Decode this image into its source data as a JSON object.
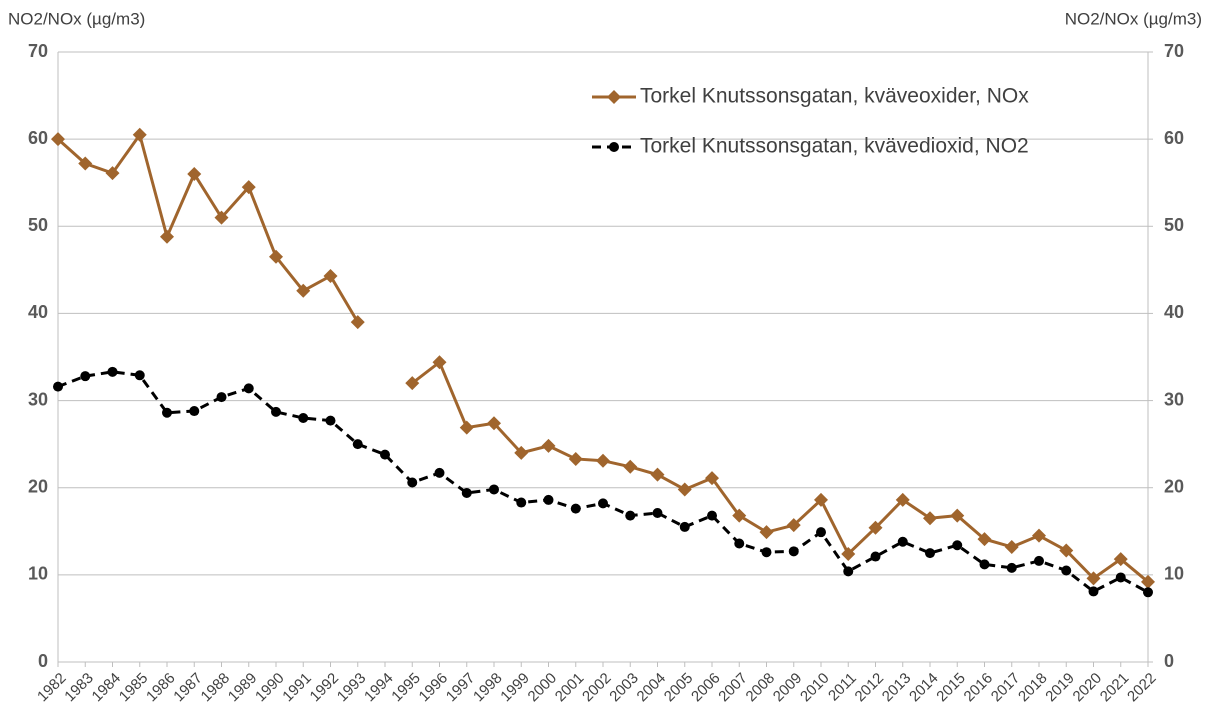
{
  "chart_data": {
    "type": "line",
    "y_label": "NO2/NOx (µg/m3)",
    "y2_label": "NO2/NOx (µg/m3)",
    "categories": [
      "1982",
      "1983",
      "1984",
      "1985",
      "1986",
      "1987",
      "1988",
      "1989",
      "1990",
      "1991",
      "1992",
      "1993",
      "1994",
      "1995",
      "1996",
      "1997",
      "1998",
      "1999",
      "2000",
      "2001",
      "2002",
      "2003",
      "2004",
      "2005",
      "2006",
      "2007",
      "2008",
      "2009",
      "2010",
      "2011",
      "2012",
      "2013",
      "2014",
      "2015",
      "2016",
      "2017",
      "2018",
      "2019",
      "2020",
      "2021",
      "2022"
    ],
    "series": [
      {
        "name": "Torkel Knutssonsgatan, kväveoxider, NOx",
        "color": "#a0652d",
        "marker": "diamond",
        "line_style": "solid",
        "values": [
          60,
          57.2,
          56.1,
          60.5,
          48.8,
          56,
          51,
          54.5,
          46.5,
          42.6,
          44.3,
          39,
          null,
          32,
          34.4,
          26.9,
          27.4,
          24,
          24.8,
          23.3,
          23.1,
          22.4,
          21.5,
          19.8,
          21.1,
          16.8,
          14.9,
          15.7,
          18.6,
          12.4,
          15.4,
          18.6,
          16.5,
          16.8,
          14.1,
          13.2,
          14.5,
          12.8,
          9.6,
          11.8,
          9.2
        ]
      },
      {
        "name": "Torkel Knutssonsgatan, kvävedioxid, NO2",
        "color": "#000000",
        "marker": "circle",
        "line_style": "dashed",
        "values": [
          31.6,
          32.8,
          33.3,
          32.9,
          28.6,
          28.8,
          30.4,
          31.4,
          28.7,
          28,
          27.7,
          25,
          23.8,
          20.6,
          21.7,
          19.4,
          19.8,
          18.3,
          18.6,
          17.6,
          18.2,
          16.8,
          17.1,
          15.5,
          16.8,
          13.6,
          12.6,
          12.7,
          14.9,
          10.4,
          12.1,
          13.8,
          12.5,
          13.4,
          11.2,
          10.8,
          11.6,
          10.5,
          8.1,
          9.7,
          8.0
        ]
      }
    ],
    "ylim": [
      0,
      70
    ],
    "yticks": [
      0,
      10,
      20,
      30,
      40,
      50,
      60,
      70
    ],
    "y2lim": [
      0,
      70
    ],
    "y2ticks": [
      0,
      10,
      20,
      30,
      40,
      50,
      60,
      70
    ],
    "grid": true,
    "legend": "top-right"
  }
}
